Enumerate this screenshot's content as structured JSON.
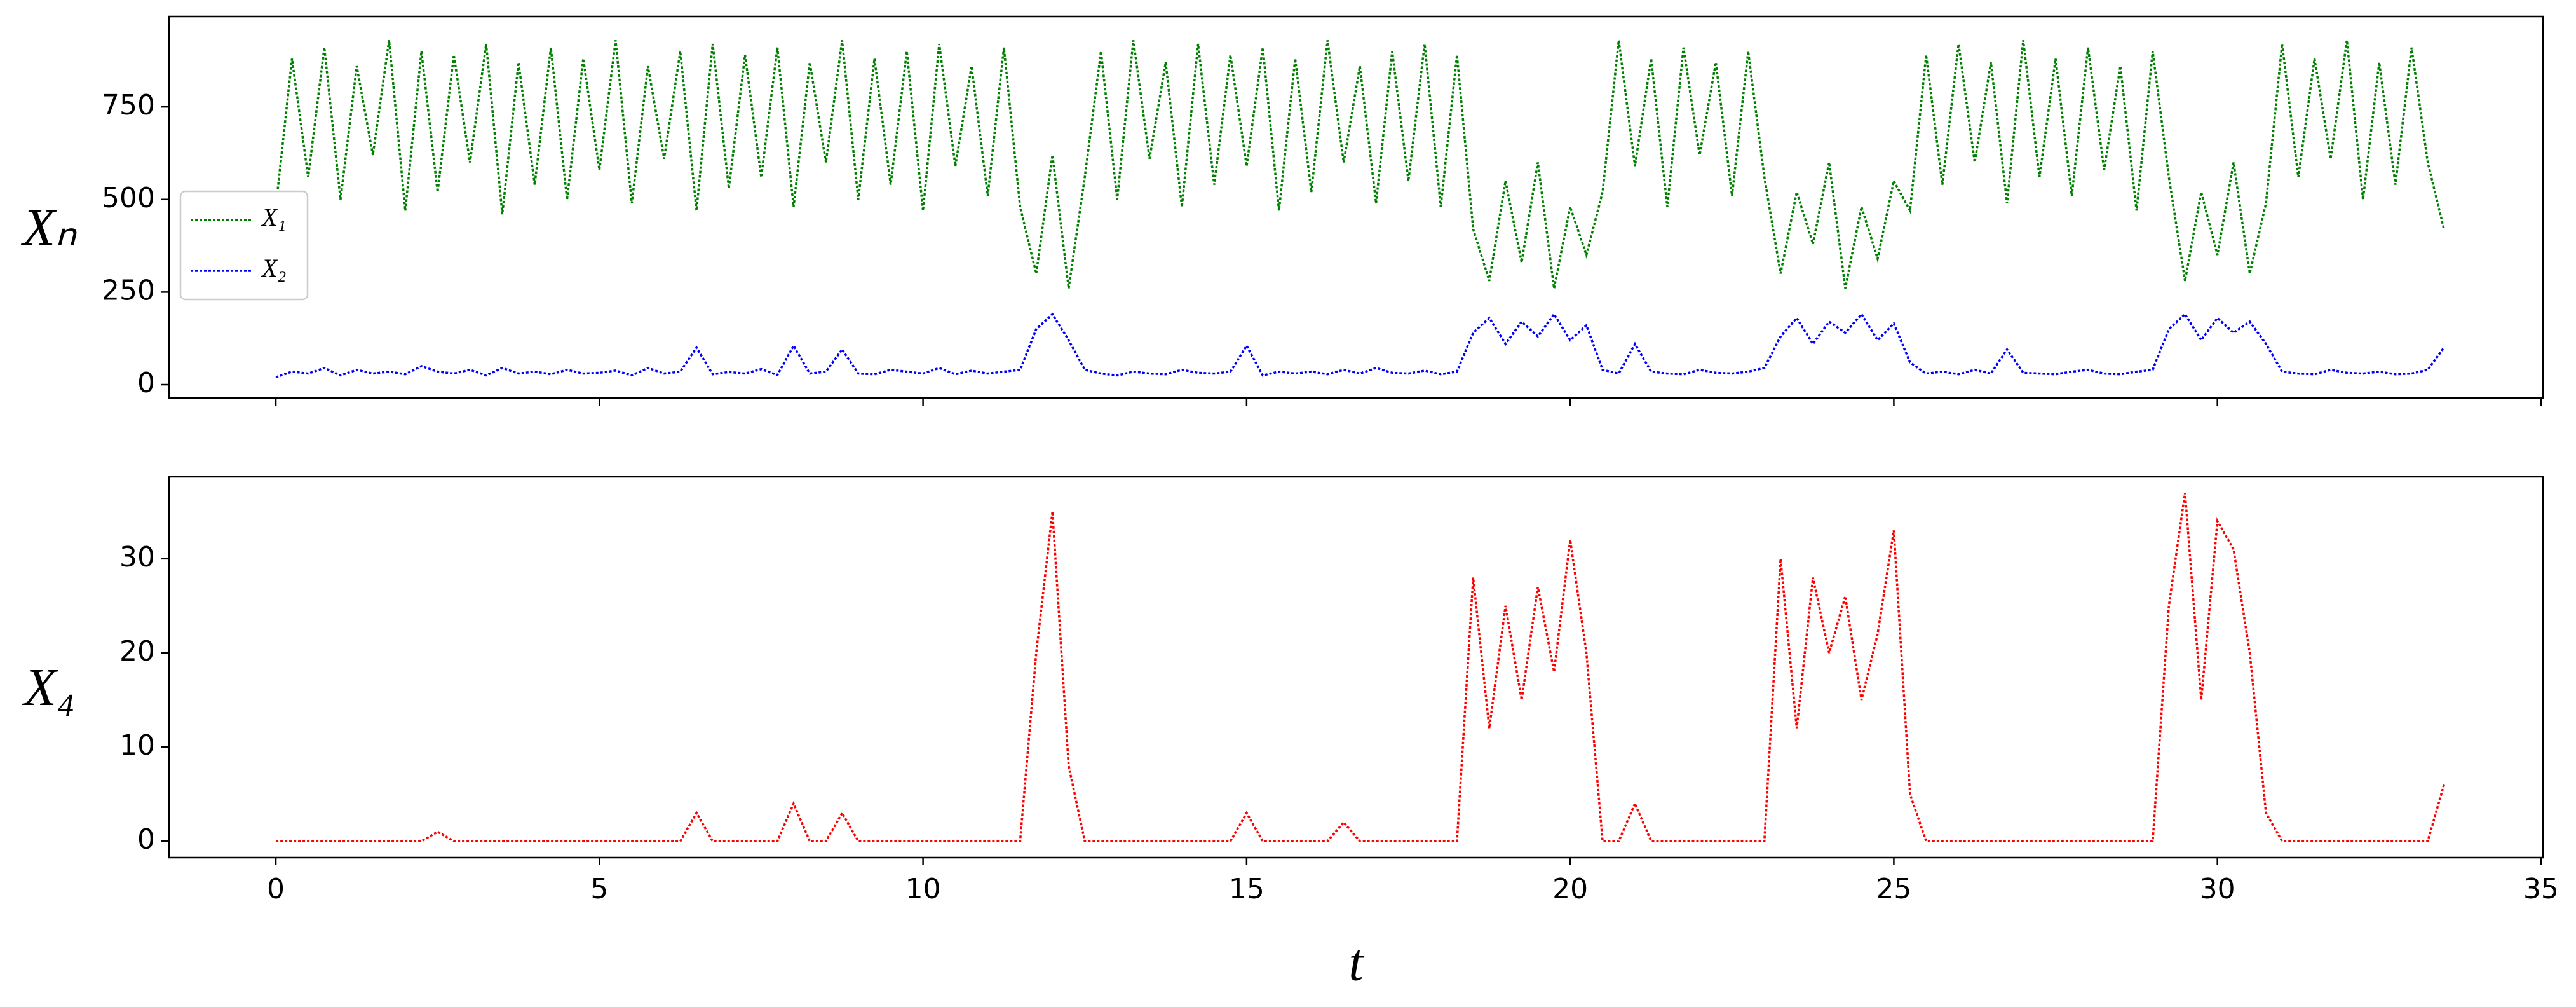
{
  "chart_data": [
    {
      "type": "line",
      "ylabel": "Xₙ",
      "legend": "center left",
      "show_xticklabels": false,
      "x": [
        0,
        0.25,
        0.5,
        0.75,
        1,
        1.25,
        1.5,
        1.75,
        2,
        2.25,
        2.5,
        2.75,
        3,
        3.25,
        3.5,
        3.75,
        4,
        4.25,
        4.5,
        4.75,
        5,
        5.25,
        5.5,
        5.75,
        6,
        6.25,
        6.5,
        6.75,
        7,
        7.25,
        7.5,
        7.75,
        8,
        8.25,
        8.5,
        8.75,
        9,
        9.25,
        9.5,
        9.75,
        10,
        10.25,
        10.5,
        10.75,
        11,
        11.25,
        11.5,
        11.75,
        12,
        12.25,
        12.5,
        12.75,
        13,
        13.25,
        13.5,
        13.75,
        14,
        14.25,
        14.5,
        14.75,
        15,
        15.25,
        15.5,
        15.75,
        16,
        16.25,
        16.5,
        16.75,
        17,
        17.25,
        17.5,
        17.75,
        18,
        18.25,
        18.5,
        18.75,
        19,
        19.25,
        19.5,
        19.75,
        20,
        20.25,
        20.5,
        20.75,
        21,
        21.25,
        21.5,
        21.75,
        22,
        22.25,
        22.5,
        22.75,
        23,
        23.25,
        23.5,
        23.75,
        24,
        24.25,
        24.5,
        24.75,
        25,
        25.25,
        25.5,
        25.75,
        26,
        26.25,
        26.5,
        26.75,
        27,
        27.25,
        27.5,
        27.75,
        28,
        28.25,
        28.5,
        28.75,
        29,
        29.25,
        29.5,
        29.75,
        30,
        30.25,
        30.5,
        30.75,
        31,
        31.25,
        31.5,
        31.75,
        32,
        32.25,
        32.5,
        32.75,
        33,
        33.25,
        33.5
      ],
      "series": [
        {
          "name": "X₁",
          "color": "#008000",
          "values": [
            480,
            880,
            560,
            910,
            500,
            860,
            620,
            930,
            470,
            900,
            520,
            890,
            600,
            920,
            460,
            870,
            540,
            910,
            500,
            880,
            580,
            930,
            490,
            860,
            610,
            900,
            470,
            920,
            530,
            890,
            560,
            910,
            480,
            870,
            600,
            930,
            500,
            880,
            540,
            900,
            470,
            920,
            590,
            860,
            510,
            910,
            480,
            300,
            620,
            260,
            560,
            900,
            500,
            930,
            610,
            870,
            480,
            920,
            540,
            890,
            590,
            910,
            470,
            880,
            520,
            930,
            600,
            860,
            490,
            900,
            550,
            920,
            480,
            890,
            420,
            280,
            550,
            330,
            600,
            260,
            480,
            350,
            520,
            930,
            590,
            880,
            480,
            910,
            620,
            870,
            510,
            900,
            560,
            300,
            520,
            380,
            600,
            260,
            480,
            340,
            550,
            470,
            890,
            540,
            920,
            600,
            870,
            490,
            930,
            560,
            880,
            510,
            910,
            580,
            860,
            470,
            900,
            560,
            280,
            520,
            350,
            600,
            300,
            490,
            920,
            560,
            880,
            610,
            930,
            500,
            870,
            540,
            910,
            600,
            420
          ]
        },
        {
          "name": "X₂",
          "color": "#0000ff",
          "values": [
            20,
            35,
            30,
            45,
            25,
            40,
            30,
            35,
            28,
            50,
            35,
            30,
            40,
            25,
            45,
            30,
            35,
            28,
            40,
            30,
            32,
            38,
            25,
            45,
            30,
            35,
            100,
            28,
            34,
            30,
            42,
            26,
            105,
            30,
            35,
            95,
            30,
            28,
            40,
            35,
            30,
            45,
            28,
            38,
            30,
            35,
            40,
            150,
            190,
            120,
            40,
            30,
            25,
            35,
            30,
            28,
            40,
            32,
            30,
            35,
            105,
            25,
            35,
            30,
            35,
            28,
            40,
            30,
            45,
            32,
            30,
            38,
            28,
            35,
            140,
            180,
            110,
            170,
            130,
            190,
            120,
            160,
            40,
            30,
            110,
            35,
            30,
            28,
            40,
            32,
            30,
            35,
            45,
            130,
            180,
            110,
            170,
            140,
            190,
            120,
            165,
            60,
            30,
            35,
            28,
            40,
            30,
            95,
            32,
            30,
            28,
            35,
            40,
            30,
            28,
            35,
            40,
            150,
            190,
            120,
            180,
            140,
            170,
            110,
            35,
            30,
            28,
            40,
            32,
            30,
            35,
            28,
            30,
            40,
            100
          ]
        }
      ],
      "xlim": [
        -1.65,
        35.03
      ],
      "ylim": [
        -36,
        994
      ],
      "xticks": [
        0,
        5,
        10,
        15,
        20,
        25,
        30,
        35
      ],
      "yticks": [
        0,
        250,
        500,
        750
      ]
    },
    {
      "type": "line",
      "ylabel": "X₄",
      "xlabel": "t",
      "show_xticklabels": true,
      "x": [
        0,
        0.25,
        0.5,
        0.75,
        1,
        1.25,
        1.5,
        1.75,
        2,
        2.25,
        2.5,
        2.75,
        3,
        3.25,
        3.5,
        3.75,
        4,
        4.25,
        4.5,
        4.75,
        5,
        5.25,
        5.5,
        5.75,
        6,
        6.25,
        6.5,
        6.75,
        7,
        7.25,
        7.5,
        7.75,
        8,
        8.25,
        8.5,
        8.75,
        9,
        9.25,
        9.5,
        9.75,
        10,
        10.25,
        10.5,
        10.75,
        11,
        11.25,
        11.5,
        11.75,
        12,
        12.25,
        12.5,
        12.75,
        13,
        13.25,
        13.5,
        13.75,
        14,
        14.25,
        14.5,
        14.75,
        15,
        15.25,
        15.5,
        15.75,
        16,
        16.25,
        16.5,
        16.75,
        17,
        17.25,
        17.5,
        17.75,
        18,
        18.25,
        18.5,
        18.75,
        19,
        19.25,
        19.5,
        19.75,
        20,
        20.25,
        20.5,
        20.75,
        21,
        21.25,
        21.5,
        21.75,
        22,
        22.25,
        22.5,
        22.75,
        23,
        23.25,
        23.5,
        23.75,
        24,
        24.25,
        24.5,
        24.75,
        25,
        25.25,
        25.5,
        25.75,
        26,
        26.25,
        26.5,
        26.75,
        27,
        27.25,
        27.5,
        27.75,
        28,
        28.25,
        28.5,
        28.75,
        29,
        29.25,
        29.5,
        29.75,
        30,
        30.25,
        30.5,
        30.75,
        31,
        31.25,
        31.5,
        31.75,
        32,
        32.25,
        32.5,
        32.75,
        33,
        33.25,
        33.5
      ],
      "series": [
        {
          "color": "#ff0000",
          "values": [
            0,
            0,
            0,
            0,
            0,
            0,
            0,
            0,
            0,
            0,
            1,
            0,
            0,
            0,
            0,
            0,
            0,
            0,
            0,
            0,
            0,
            0,
            0,
            0,
            0,
            0,
            3,
            0,
            0,
            0,
            0,
            0,
            4,
            0,
            0,
            3,
            0,
            0,
            0,
            0,
            0,
            0,
            0,
            0,
            0,
            0,
            0,
            20,
            35,
            8,
            0,
            0,
            0,
            0,
            0,
            0,
            0,
            0,
            0,
            0,
            3,
            0,
            0,
            0,
            0,
            0,
            2,
            0,
            0,
            0,
            0,
            0,
            0,
            0,
            28,
            12,
            25,
            15,
            27,
            18,
            32,
            20,
            0,
            0,
            4,
            0,
            0,
            0,
            0,
            0,
            0,
            0,
            0,
            30,
            12,
            28,
            20,
            26,
            15,
            22,
            33,
            5,
            0,
            0,
            0,
            0,
            0,
            0,
            0,
            0,
            0,
            0,
            0,
            0,
            0,
            0,
            0,
            25,
            37,
            15,
            34,
            31,
            20,
            3,
            0,
            0,
            0,
            0,
            0,
            0,
            0,
            0,
            0,
            0,
            6
          ]
        }
      ],
      "xlim": [
        -1.65,
        35.03
      ],
      "ylim": [
        -1.74,
        38.7
      ],
      "xticks": [
        0,
        5,
        10,
        15,
        20,
        25,
        30,
        35
      ],
      "yticks": [
        0,
        10,
        20,
        30
      ]
    }
  ]
}
